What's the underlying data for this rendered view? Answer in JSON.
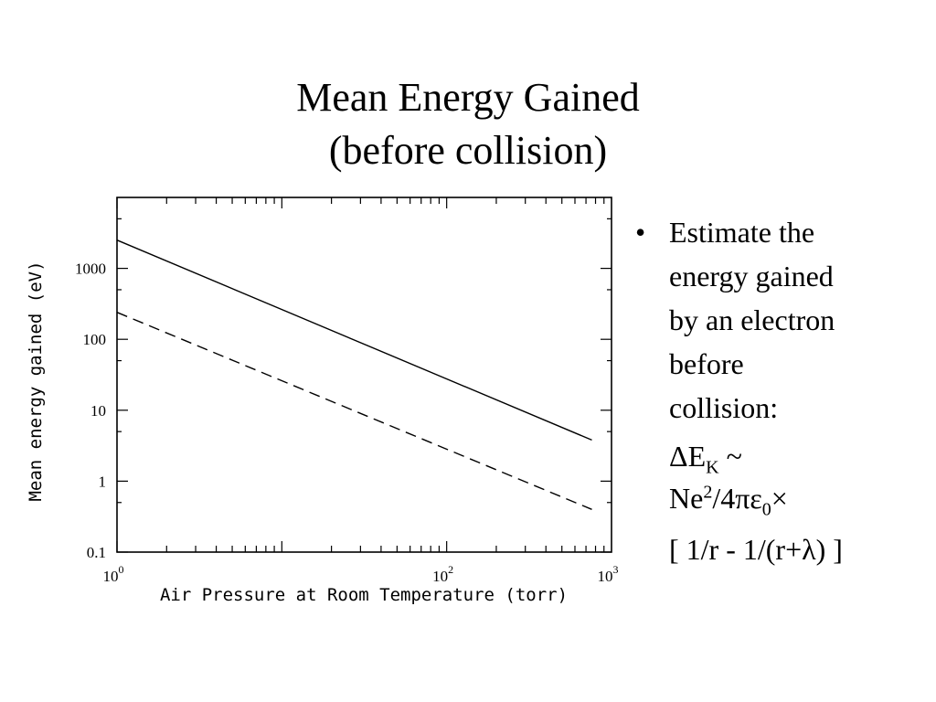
{
  "title": {
    "line1": "Mean Energy Gained",
    "line2": "(before collision)"
  },
  "bullet": {
    "marker": "•",
    "lines": [
      "Estimate the",
      "energy gained",
      "by an electron",
      "before",
      "collision:"
    ]
  },
  "formula": {
    "line1_pre": "ΔE",
    "line1_sub": "K",
    "line1_post": " ~",
    "line2_pre": "Ne",
    "line2_sup": "2",
    "line2_mid": "/4πε",
    "line2_sub": "0",
    "line2_post": "×",
    "line3": "[ 1/r - 1/(r+λ) ]"
  },
  "chart_data": {
    "type": "line",
    "xlabel": "Air Pressure at Room Temperature (torr)",
    "ylabel": "Mean energy gained (eV)",
    "x_scale": "log",
    "y_scale": "log",
    "xlim": [
      1,
      1000
    ],
    "ylim": [
      0.1,
      10000
    ],
    "x_ticks": [
      {
        "value": 1,
        "base": "10",
        "exp": "0"
      },
      {
        "value": 100,
        "base": "10",
        "exp": "2"
      },
      {
        "value": 1000,
        "base": "10",
        "exp": "3"
      }
    ],
    "y_ticks": [
      {
        "value": 0.1,
        "label": "0.1"
      },
      {
        "value": 1,
        "label": "1"
      },
      {
        "value": 10,
        "label": "10"
      },
      {
        "value": 100,
        "label": "100"
      },
      {
        "value": 1000,
        "label": "1000"
      }
    ],
    "series": [
      {
        "style": "solid",
        "x": [
          1,
          760
        ],
        "y": [
          2500,
          3.8
        ]
      },
      {
        "style": "dashed",
        "x": [
          1,
          760
        ],
        "y": [
          240,
          0.4
        ]
      }
    ],
    "grid": false,
    "colors": {
      "line": "#000000",
      "axis": "#000000"
    }
  }
}
